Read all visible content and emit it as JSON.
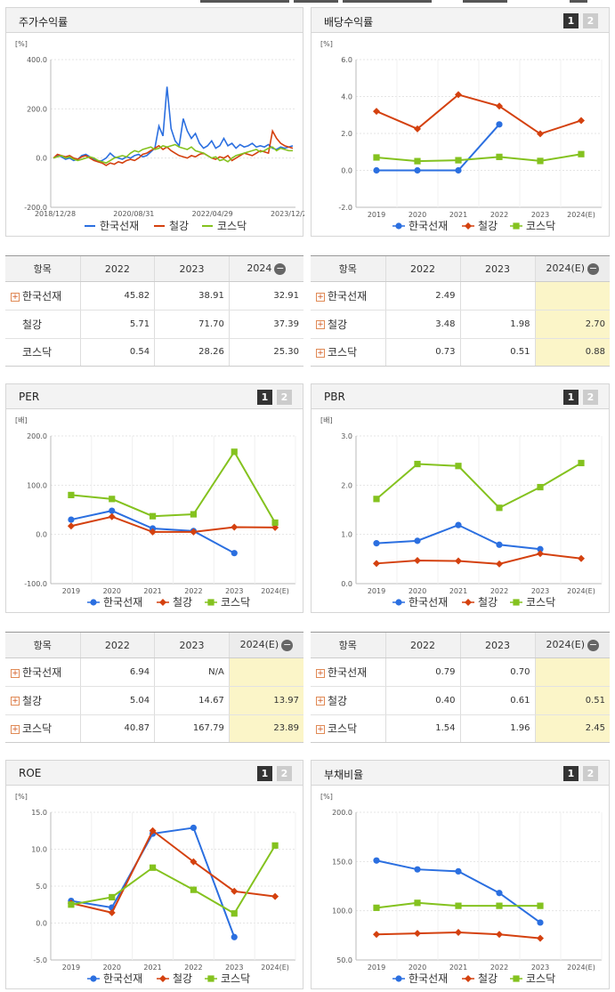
{
  "top_tabs": [
    "",
    "",
    "",
    "",
    ""
  ],
  "panels": {
    "price": {
      "title": "주가수익률"
    },
    "dividend": {
      "title": "배당수익률",
      "btn1": "1",
      "btn2": "2"
    },
    "per": {
      "title": "PER",
      "btn1": "1",
      "btn2": "2"
    },
    "pbr": {
      "title": "PBR",
      "btn1": "1",
      "btn2": "2"
    },
    "roe": {
      "title": "ROE",
      "btn1": "1",
      "btn2": "2"
    },
    "debt": {
      "title": "부채비율",
      "btn1": "1",
      "btn2": "2"
    }
  },
  "legend": [
    "한국선재",
    "철강",
    "코스닥"
  ],
  "colors": {
    "hk": "#2b6fe0",
    "steel": "#d4410f",
    "kosdaq": "#84c21f"
  },
  "chart_data": [
    {
      "id": "price",
      "type": "line",
      "unit": "[%]",
      "ylim": [
        -200,
        400
      ],
      "yticks": [
        "400.0",
        "200.0",
        "0.0",
        "-200.0"
      ],
      "xlabels": [
        "2018/12/28",
        "2020/08/31",
        "2022/04/29",
        "2023/12/28"
      ],
      "series": [
        {
          "name": "한국선재",
          "values": [
            0,
            10,
            5,
            -5,
            0,
            -10,
            -5,
            10,
            15,
            5,
            -5,
            -15,
            -10,
            0,
            20,
            5,
            0,
            -5,
            5,
            0,
            10,
            15,
            5,
            10,
            25,
            40,
            130,
            90,
            290,
            120,
            70,
            50,
            160,
            110,
            80,
            100,
            60,
            40,
            50,
            70,
            40,
            50,
            80,
            50,
            60,
            40,
            55,
            45,
            50,
            60,
            45,
            50,
            45,
            55,
            40,
            35,
            45,
            40,
            45,
            50
          ]
        },
        {
          "name": "철강",
          "values": [
            0,
            15,
            10,
            5,
            10,
            0,
            -5,
            5,
            10,
            0,
            -10,
            -15,
            -20,
            -30,
            -20,
            -25,
            -15,
            -20,
            -10,
            -5,
            -10,
            0,
            15,
            20,
            30,
            40,
            50,
            35,
            45,
            30,
            20,
            10,
            5,
            0,
            10,
            5,
            15,
            20,
            10,
            0,
            -5,
            5,
            0,
            10,
            -10,
            0,
            10,
            20,
            15,
            10,
            20,
            30,
            25,
            20,
            110,
            80,
            60,
            50,
            45,
            40
          ]
        },
        {
          "name": "코스닥",
          "values": [
            0,
            5,
            10,
            0,
            5,
            -5,
            -10,
            -5,
            0,
            5,
            0,
            -10,
            -15,
            -20,
            -10,
            0,
            5,
            10,
            5,
            20,
            30,
            25,
            35,
            40,
            45,
            35,
            40,
            50,
            45,
            50,
            55,
            45,
            40,
            35,
            45,
            30,
            25,
            20,
            10,
            0,
            5,
            -10,
            -5,
            -15,
            0,
            10,
            15,
            20,
            25,
            30,
            35,
            25,
            30,
            40,
            45,
            30,
            40,
            35,
            30,
            30
          ]
        }
      ]
    },
    {
      "id": "dividend",
      "type": "line",
      "unit": "[%]",
      "ylim": [
        -2,
        6
      ],
      "yticks": [
        "6.0",
        "4.0",
        "2.0",
        "0.0",
        "-2.0"
      ],
      "categories": [
        "2019",
        "2020",
        "2021",
        "2022",
        "2023",
        "2024(E)"
      ],
      "series": [
        {
          "name": "한국선재",
          "values": [
            0,
            0,
            0,
            2.49,
            null,
            null
          ]
        },
        {
          "name": "철강",
          "values": [
            3.2,
            2.25,
            4.1,
            3.48,
            1.98,
            2.7
          ]
        },
        {
          "name": "코스닥",
          "values": [
            0.7,
            0.5,
            0.55,
            0.73,
            0.51,
            0.88
          ]
        }
      ]
    },
    {
      "id": "per",
      "type": "line",
      "unit": "[배]",
      "ylim": [
        -100,
        200
      ],
      "yticks": [
        "200.0",
        "100.0",
        "0.0",
        "-100.0"
      ],
      "categories": [
        "2019",
        "2020",
        "2021",
        "2022",
        "2023",
        "2024(E)"
      ],
      "series": [
        {
          "name": "한국선재",
          "values": [
            30,
            48,
            12,
            6.94,
            -38,
            null
          ]
        },
        {
          "name": "철강",
          "values": [
            17,
            36,
            5,
            5.04,
            14.67,
            13.97
          ]
        },
        {
          "name": "코스닥",
          "values": [
            80,
            72,
            37,
            40.87,
            167.79,
            23.89
          ]
        }
      ]
    },
    {
      "id": "pbr",
      "type": "line",
      "unit": "[배]",
      "ylim": [
        0,
        3
      ],
      "yticks": [
        "3.0",
        "2.0",
        "1.0",
        "0.0"
      ],
      "categories": [
        "2019",
        "2020",
        "2021",
        "2022",
        "2023",
        "2024(E)"
      ],
      "series": [
        {
          "name": "한국선재",
          "values": [
            0.82,
            0.87,
            1.19,
            0.79,
            0.7,
            null
          ]
        },
        {
          "name": "철강",
          "values": [
            0.41,
            0.47,
            0.46,
            0.4,
            0.61,
            0.51
          ]
        },
        {
          "name": "코스닥",
          "values": [
            1.72,
            2.43,
            2.39,
            1.54,
            1.96,
            2.45
          ]
        }
      ]
    },
    {
      "id": "roe",
      "type": "line",
      "unit": "[%]",
      "ylim": [
        -5,
        15
      ],
      "yticks": [
        "15.0",
        "10.0",
        "5.0",
        "0.0",
        "-5.0"
      ],
      "categories": [
        "2019",
        "2020",
        "2021",
        "2022",
        "2023",
        "2024(E)"
      ],
      "series": [
        {
          "name": "한국선재",
          "values": [
            3.0,
            2.1,
            12.1,
            12.9,
            -1.9,
            null
          ]
        },
        {
          "name": "철강",
          "values": [
            2.7,
            1.4,
            12.5,
            8.3,
            4.3,
            3.6
          ]
        },
        {
          "name": "코스닥",
          "values": [
            2.5,
            3.5,
            7.5,
            4.5,
            1.3,
            10.5
          ]
        }
      ]
    },
    {
      "id": "debt",
      "type": "line",
      "unit": "[%]",
      "ylim": [
        50,
        200
      ],
      "yticks": [
        "200.0",
        "150.0",
        "100.0",
        "50.0"
      ],
      "categories": [
        "2019",
        "2020",
        "2021",
        "2022",
        "2023",
        "2024(E)"
      ],
      "series": [
        {
          "name": "한국선재",
          "values": [
            151,
            142,
            140,
            118,
            88,
            null
          ]
        },
        {
          "name": "철강",
          "values": [
            76,
            77,
            78,
            76,
            72,
            null
          ]
        },
        {
          "name": "코스닥",
          "values": [
            103,
            108,
            105,
            105,
            105,
            null
          ]
        }
      ]
    }
  ],
  "tables": {
    "price": {
      "headers": [
        "항목",
        "2022",
        "2023",
        "2024"
      ],
      "rows": [
        {
          "label": "한국선재",
          "plus": true,
          "values": [
            "45.82",
            "38.91",
            "32.91"
          ]
        },
        {
          "label": "철강",
          "plus": false,
          "values": [
            "5.71",
            "71.70",
            "37.39"
          ]
        },
        {
          "label": "코스닥",
          "plus": false,
          "values": [
            "0.54",
            "28.26",
            "25.30"
          ]
        }
      ]
    },
    "dividend": {
      "headers": [
        "항목",
        "2022",
        "2023",
        "2024(E)"
      ],
      "rows": [
        {
          "label": "한국선재",
          "plus": true,
          "values": [
            "2.49",
            "",
            ""
          ]
        },
        {
          "label": "철강",
          "plus": true,
          "values": [
            "3.48",
            "1.98",
            "2.70"
          ]
        },
        {
          "label": "코스닥",
          "plus": true,
          "values": [
            "0.73",
            "0.51",
            "0.88"
          ]
        }
      ]
    },
    "per": {
      "headers": [
        "항목",
        "2022",
        "2023",
        "2024(E)"
      ],
      "rows": [
        {
          "label": "한국선재",
          "plus": true,
          "values": [
            "6.94",
            "N/A",
            ""
          ]
        },
        {
          "label": "철강",
          "plus": true,
          "values": [
            "5.04",
            "14.67",
            "13.97"
          ]
        },
        {
          "label": "코스닥",
          "plus": true,
          "values": [
            "40.87",
            "167.79",
            "23.89"
          ]
        }
      ]
    },
    "pbr": {
      "headers": [
        "항목",
        "2022",
        "2023",
        "2024(E)"
      ],
      "rows": [
        {
          "label": "한국선재",
          "plus": true,
          "values": [
            "0.79",
            "0.70",
            ""
          ]
        },
        {
          "label": "철강",
          "plus": true,
          "values": [
            "0.40",
            "0.61",
            "0.51"
          ]
        },
        {
          "label": "코스닥",
          "plus": true,
          "values": [
            "1.54",
            "1.96",
            "2.45"
          ]
        }
      ]
    }
  }
}
